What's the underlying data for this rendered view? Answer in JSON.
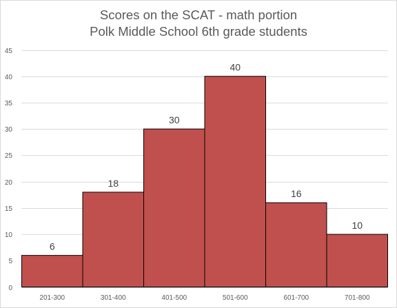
{
  "chart_data": {
    "type": "bar",
    "title": "Scores on the SCAT - math portion",
    "subtitle": "Polk Middle School 6th grade students",
    "xlabel": "",
    "ylabel": "",
    "categories": [
      "201-300",
      "301-400",
      "401-500",
      "501-600",
      "601-700",
      "701-800"
    ],
    "values": [
      6,
      18,
      30,
      40,
      16,
      10
    ],
    "data_labels": [
      "6",
      "18",
      "30",
      "40",
      "16",
      "10"
    ],
    "ylim": [
      0,
      45
    ],
    "y_ticks": [
      0,
      5,
      10,
      15,
      20,
      25,
      30,
      35,
      40,
      45
    ],
    "grid": true,
    "legend": "none",
    "bar_color": "#c0504d",
    "bar_edge_color": "#000000",
    "gridline_color": "#d9d9d9"
  }
}
